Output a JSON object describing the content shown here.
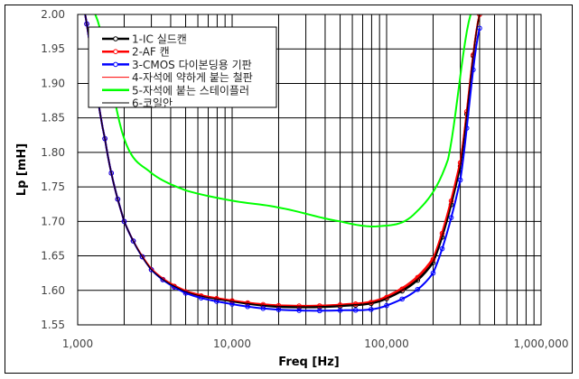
{
  "chart_data": {
    "type": "line",
    "title": "",
    "xlabel": "Freq [Hz]",
    "ylabel": "Lp [mH]",
    "xscale": "log",
    "xlim": [
      1000,
      1000000
    ],
    "ylim": [
      1.55,
      2.0
    ],
    "grid": true,
    "legend_position": "upper-left",
    "x_tick_labels": [
      "1,000",
      "10,000",
      "100,000",
      "1,000,000"
    ],
    "y_tick_labels": [
      "2.00",
      "1.95",
      "1.90",
      "1.85",
      "1.80",
      "1.75",
      "1.70",
      "1.65",
      "1.60",
      "1.55"
    ],
    "series": [
      {
        "name": "1-IC 실드캔",
        "color": "#000000",
        "marker": "circle",
        "x": [
          1000,
          1500,
          2000,
          3000,
          5000,
          10000,
          20000,
          50000,
          100000,
          200000,
          300000,
          400000
        ],
        "values": [
          2.05,
          1.82,
          1.7,
          1.63,
          1.598,
          1.584,
          1.576,
          1.577,
          1.588,
          1.64,
          1.78,
          2.0
        ]
      },
      {
        "name": "2-AF 캔",
        "color": "#ff0000",
        "marker": "circle",
        "x": [
          1000,
          1500,
          2000,
          3000,
          5000,
          10000,
          20000,
          50000,
          100000,
          200000,
          300000,
          400000
        ],
        "values": [
          2.05,
          1.82,
          1.7,
          1.63,
          1.598,
          1.585,
          1.578,
          1.579,
          1.59,
          1.645,
          1.785,
          2.0
        ]
      },
      {
        "name": "3-CMOS 다이본딩용 기판",
        "color": "#0000ff",
        "marker": "circle",
        "x": [
          1000,
          1500,
          2000,
          3000,
          5000,
          10000,
          20000,
          50000,
          100000,
          200000,
          300000,
          400000
        ],
        "values": [
          2.05,
          1.82,
          1.7,
          1.63,
          1.596,
          1.58,
          1.572,
          1.571,
          1.578,
          1.625,
          1.76,
          1.98
        ]
      },
      {
        "name": "4-자석에 약하게 붙는 철판",
        "color": "#ff0000",
        "marker": "none",
        "x": [
          1000,
          1500,
          2000,
          3000,
          5000,
          10000,
          20000,
          50000,
          100000,
          200000,
          300000,
          400000
        ],
        "values": [
          2.05,
          1.82,
          1.7,
          1.632,
          1.6,
          1.586,
          1.579,
          1.58,
          1.592,
          1.648,
          1.79,
          2.0
        ]
      },
      {
        "name": "5-자석에 붙는 스테이플러",
        "color": "#00ff00",
        "marker": "none",
        "x": [
          1300,
          2000,
          3000,
          5000,
          10000,
          20000,
          50000,
          90000,
          150000,
          250000,
          350000
        ],
        "values": [
          2.0,
          1.82,
          1.77,
          1.745,
          1.73,
          1.72,
          1.7,
          1.693,
          1.71,
          1.79,
          2.0
        ]
      },
      {
        "name": "6-코일안",
        "color": "#000000",
        "marker": "none",
        "x": [
          1000,
          1500,
          2000,
          3000,
          5000,
          10000,
          20000,
          50000,
          100000,
          200000,
          300000,
          400000
        ],
        "values": [
          2.05,
          1.82,
          1.7,
          1.63,
          1.598,
          1.584,
          1.577,
          1.578,
          1.589,
          1.642,
          1.78,
          2.0
        ]
      }
    ]
  },
  "legend": {
    "items": [
      "1-IC 실드캔",
      "2-AF 캔",
      "3-CMOS 다이본딩용 기판",
      "4-자석에 약하게 붙는 철판",
      "5-자석에 붙는 스테이플러",
      "6-코일안"
    ]
  }
}
